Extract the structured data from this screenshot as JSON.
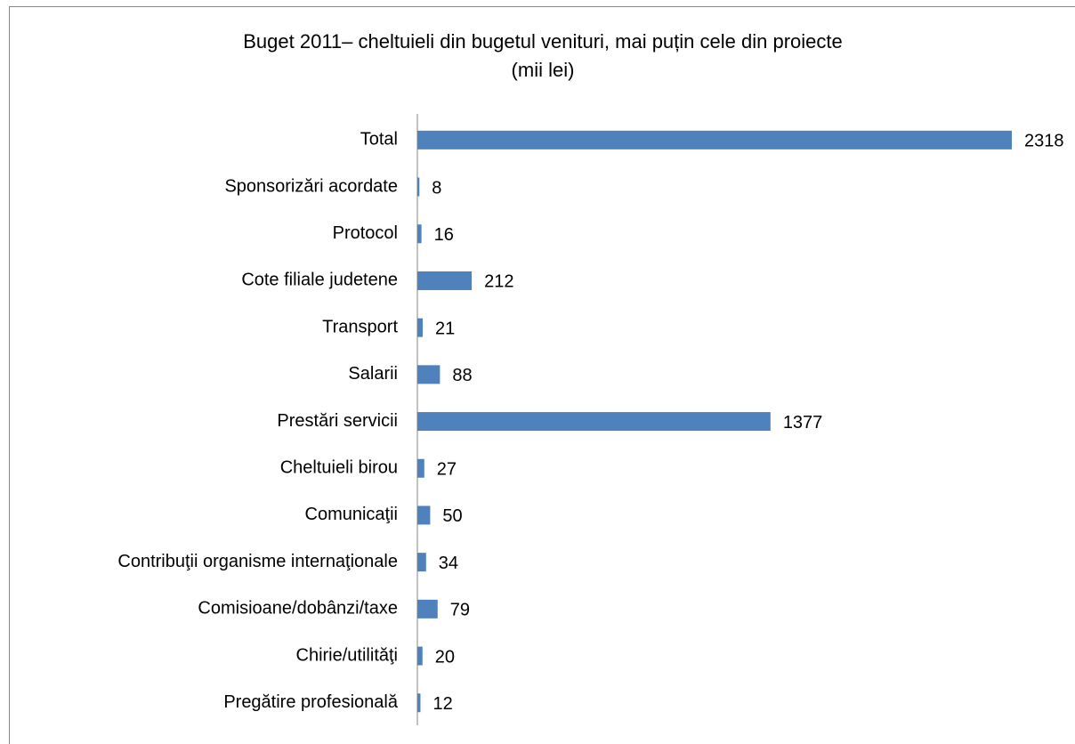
{
  "chart_data": {
    "type": "barh",
    "title": [
      "Buget 2011– cheltuieli din bugetul venituri, mai puțin cele din proiecte",
      "(mii lei)"
    ],
    "categories": [
      "Total",
      "Sponsorizări acordate",
      "Protocol",
      "Cote filiale judetene",
      "Transport",
      "Salarii",
      "Prestări servicii",
      "Cheltuieli birou",
      "Comunicaţii",
      "Contribuţii organisme internaţionale",
      "Comisioane/dobânzi/taxe",
      "Chirie/utilităţi",
      "Pregătire profesională"
    ],
    "values": [
      2318,
      8,
      16,
      212,
      21,
      88,
      1377,
      27,
      50,
      34,
      79,
      20,
      12
    ],
    "color": "#4f81bd"
  }
}
